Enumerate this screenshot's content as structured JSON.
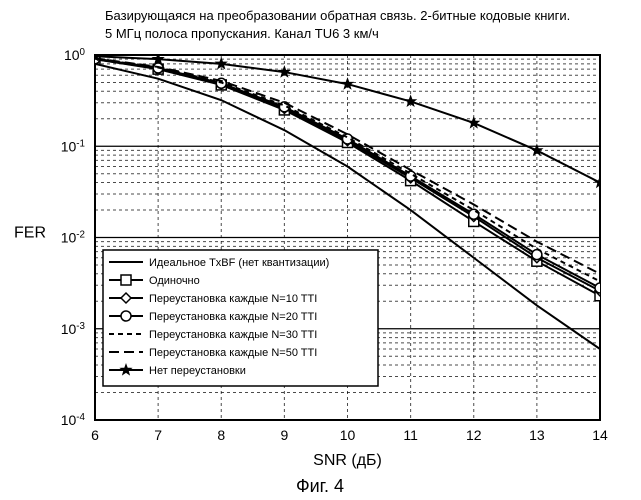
{
  "chart": {
    "type": "line-log",
    "title_line1": "Базирующаяся на преобразовании обратная связь. 2-битные кодовые книги.",
    "title_line2": "5 МГц полоса пропускания. Канал TU6 3 км/ч",
    "xlabel": "SNR (дБ)",
    "ylabel": "FER",
    "caption": "Фиг. 4",
    "xlim": [
      6,
      14
    ],
    "xtick_step": 1,
    "ylim_exp": [
      -4,
      0
    ],
    "ytick_minor_vals": [
      2,
      3,
      4,
      5,
      6,
      7,
      8,
      9
    ],
    "background_color": "#ffffff",
    "axis_color": "#000000",
    "grid_major_color": "#000000",
    "grid_minor_color": "#000000",
    "grid_minor_dash": "3,3",
    "title_fontsize": 13,
    "label_fontsize": 16,
    "tick_fontsize": 14,
    "caption_fontsize": 18,
    "legend_fontsize": 11,
    "line_width": 2,
    "marker_size": 5,
    "legend_box": {
      "stroke": "#000000",
      "fill": "#ffffff"
    },
    "series": [
      {
        "id": "ideal",
        "label": "Идеальное TxBF (нет квантизации)",
        "color": "#000000",
        "dash": "",
        "marker": "none",
        "x": [
          6,
          7,
          8,
          9,
          10,
          11,
          12,
          13,
          14
        ],
        "y": [
          0.8,
          0.55,
          0.32,
          0.15,
          0.06,
          0.02,
          0.006,
          0.0018,
          0.0006
        ]
      },
      {
        "id": "single",
        "label": "Одиночно",
        "color": "#000000",
        "dash": "",
        "marker": "square",
        "x": [
          6,
          7,
          8,
          9,
          10,
          11,
          12,
          13,
          14
        ],
        "y": [
          0.9,
          0.7,
          0.47,
          0.25,
          0.11,
          0.042,
          0.015,
          0.0055,
          0.0023
        ]
      },
      {
        "id": "n10",
        "label": "Переустановка каждые N=10 TTI",
        "color": "#000000",
        "dash": "",
        "marker": "diamond",
        "x": [
          6,
          7,
          8,
          9,
          10,
          11,
          12,
          13,
          14
        ],
        "y": [
          0.9,
          0.71,
          0.48,
          0.26,
          0.115,
          0.045,
          0.017,
          0.006,
          0.0026
        ]
      },
      {
        "id": "n20",
        "label": "Переустановка каждые N=20 TTI",
        "color": "#000000",
        "dash": "",
        "marker": "circle",
        "x": [
          6,
          7,
          8,
          9,
          10,
          11,
          12,
          13,
          14
        ],
        "y": [
          0.91,
          0.72,
          0.49,
          0.27,
          0.12,
          0.047,
          0.018,
          0.0065,
          0.0028
        ]
      },
      {
        "id": "n30",
        "label": "Переустановка каждые N=30 TTI",
        "color": "#000000",
        "dash": "5,4",
        "marker": "none",
        "x": [
          6,
          7,
          8,
          9,
          10,
          11,
          12,
          13,
          14
        ],
        "y": [
          0.91,
          0.73,
          0.5,
          0.28,
          0.125,
          0.05,
          0.02,
          0.0075,
          0.0033
        ]
      },
      {
        "id": "n50",
        "label": "Переустановка каждые N=50 TTI",
        "color": "#000000",
        "dash": "10,5",
        "marker": "none",
        "x": [
          6,
          7,
          8,
          9,
          10,
          11,
          12,
          13,
          14
        ],
        "y": [
          0.92,
          0.74,
          0.52,
          0.3,
          0.135,
          0.055,
          0.023,
          0.009,
          0.004
        ]
      },
      {
        "id": "noreset",
        "label": "Нет переустановки",
        "color": "#000000",
        "dash": "",
        "marker": "star",
        "x": [
          6,
          7,
          8,
          9,
          10,
          11,
          12,
          13,
          14
        ],
        "y": [
          0.97,
          0.9,
          0.8,
          0.65,
          0.48,
          0.31,
          0.18,
          0.09,
          0.04
        ]
      }
    ]
  }
}
